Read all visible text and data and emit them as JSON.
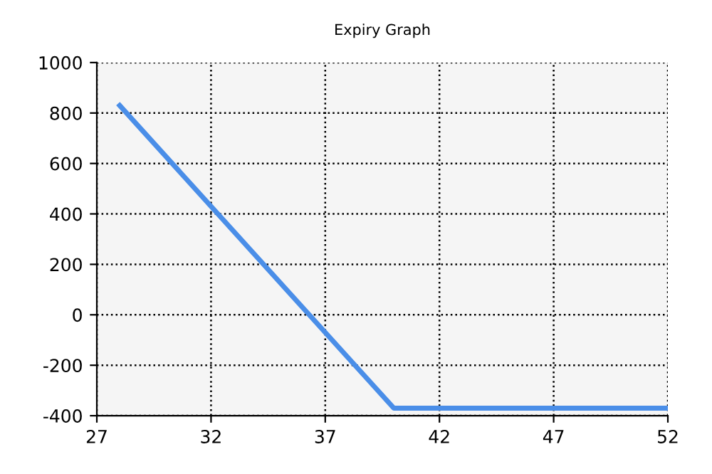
{
  "chart_data": {
    "type": "line",
    "title": "Expiry Graph",
    "x": [
      28,
      40,
      52
    ],
    "series": [
      {
        "color": "#4a8ee8",
        "values": [
          830,
          -370,
          -370
        ]
      }
    ],
    "xlim": [
      27,
      52
    ],
    "xticks": [
      27,
      32,
      37,
      42,
      47,
      52
    ],
    "ylim": [
      -400,
      1000
    ],
    "yticks": [
      -400,
      -200,
      0,
      200,
      400,
      600,
      800,
      1000
    ],
    "grid": true,
    "line_style": "solid",
    "marker": "none"
  }
}
